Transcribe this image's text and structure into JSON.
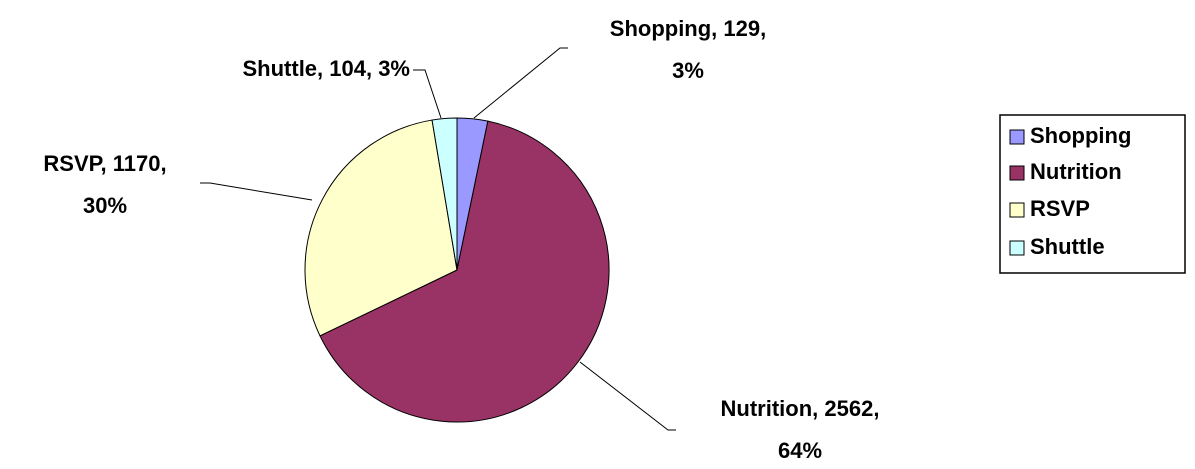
{
  "chart_data": {
    "type": "pie",
    "categories": [
      "Shopping",
      "Nutrition",
      "RSVP",
      "Shuttle"
    ],
    "values": [
      129,
      2562,
      1170,
      104
    ],
    "value_labels": [
      [
        "Shopping, 129,",
        "3%"
      ],
      [
        "Nutrition, 2562,",
        "64%"
      ],
      [
        "RSVP, 1170,",
        "30%"
      ],
      [
        "Shuttle, 104, 3%"
      ]
    ],
    "colors": [
      "#9999ff",
      "#993366",
      "#ffffcc",
      "#ccffff"
    ],
    "legend": "right"
  }
}
